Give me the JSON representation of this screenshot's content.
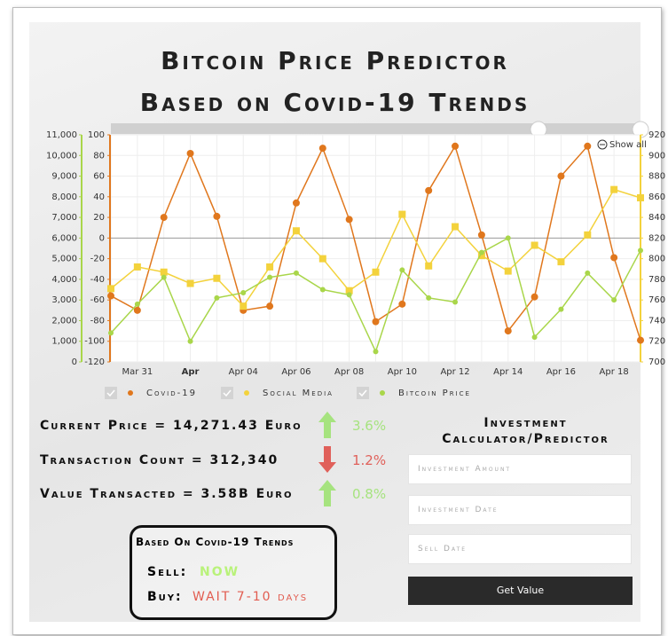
{
  "header": {
    "title": "Bitcoin Price Predictor",
    "subtitle": "Based on Covid-19 Trends"
  },
  "chart_data": {
    "type": "line",
    "categories": [
      null,
      "Mar 31",
      null,
      "Apr",
      null,
      "Apr 04",
      null,
      "Apr 06",
      null,
      "Apr 08",
      null,
      "Apr 10",
      null,
      "Apr 12",
      null,
      "Apr 14",
      null,
      "Apr 16",
      null,
      "Apr 18",
      null
    ],
    "series": [
      {
        "name": "Covid-19",
        "color": "#e0771d",
        "axis": "y",
        "values": [
          -56,
          -70,
          20,
          82,
          21,
          -70,
          -66,
          34,
          87,
          18,
          -81,
          -64,
          46,
          89,
          3,
          -90,
          -57,
          60,
          89,
          -19,
          -99
        ]
      },
      {
        "name": "Social Media",
        "color": "#f3d23c",
        "axis": "y2",
        "values": [
          771,
          792,
          787,
          776,
          781,
          754,
          792,
          827,
          800,
          769,
          787,
          843,
          793,
          831,
          803,
          788,
          813,
          797,
          823,
          867,
          859
        ]
      },
      {
        "name": "Bitcoin Price",
        "color": "#a9d64a",
        "axis": "y3",
        "values": [
          1400,
          2800,
          4100,
          1000,
          3100,
          3350,
          4100,
          4300,
          3500,
          3250,
          500,
          4450,
          3100,
          2900,
          5300,
          6000,
          1200,
          2550,
          4300,
          3000,
          5400
        ]
      }
    ],
    "ylim": [
      -120,
      100
    ],
    "yticks": [
      -120,
      -100,
      -80,
      -60,
      -40,
      -20,
      0,
      20,
      40,
      60,
      80,
      100
    ],
    "y2lim": [
      700,
      920
    ],
    "y2ticks": [
      700,
      720,
      740,
      760,
      780,
      800,
      820,
      840,
      860,
      880,
      900,
      920
    ],
    "y3lim": [
      0,
      11000
    ],
    "y3ticks": [
      0,
      {
        "value": 1000,
        "label": "1,000"
      },
      {
        "value": 2000,
        "label": "2,000"
      },
      {
        "value": 3000,
        "label": "3,000"
      },
      {
        "value": 4000,
        "label": "4,000"
      },
      {
        "value": 5000,
        "label": "5,000"
      },
      {
        "value": 6000,
        "label": "6,000"
      },
      {
        "value": 7000,
        "label": "7,000"
      },
      {
        "value": 8000,
        "label": "8,000"
      },
      {
        "value": 9000,
        "label": "9,000"
      },
      {
        "value": 10000,
        "label": "10,000"
      },
      {
        "value": 11000,
        "label": "11,000"
      }
    ],
    "grid": true,
    "zoom_button": "Show all"
  },
  "stats": [
    {
      "label": "Current Price = 14,271.43 Euro",
      "change": "3.6%",
      "direction": "up"
    },
    {
      "label": "Transaction Count = 312,340",
      "change": "1.2%",
      "direction": "down"
    },
    {
      "label": "Value Transacted = 3.58B Euro",
      "change": "0.8%",
      "direction": "up"
    }
  ],
  "signal": {
    "title": "Based On Covid-19 Trends",
    "sell_label": "Sell:",
    "sell_value": "NOW",
    "buy_label": "Buy:",
    "buy_value": "WAIT 7-10 days"
  },
  "calculator": {
    "title": "Investment Calculator/Predictor",
    "fields": [
      "Investment Amount",
      "Investment Date",
      "Sell Date"
    ],
    "button": "Get Value"
  }
}
